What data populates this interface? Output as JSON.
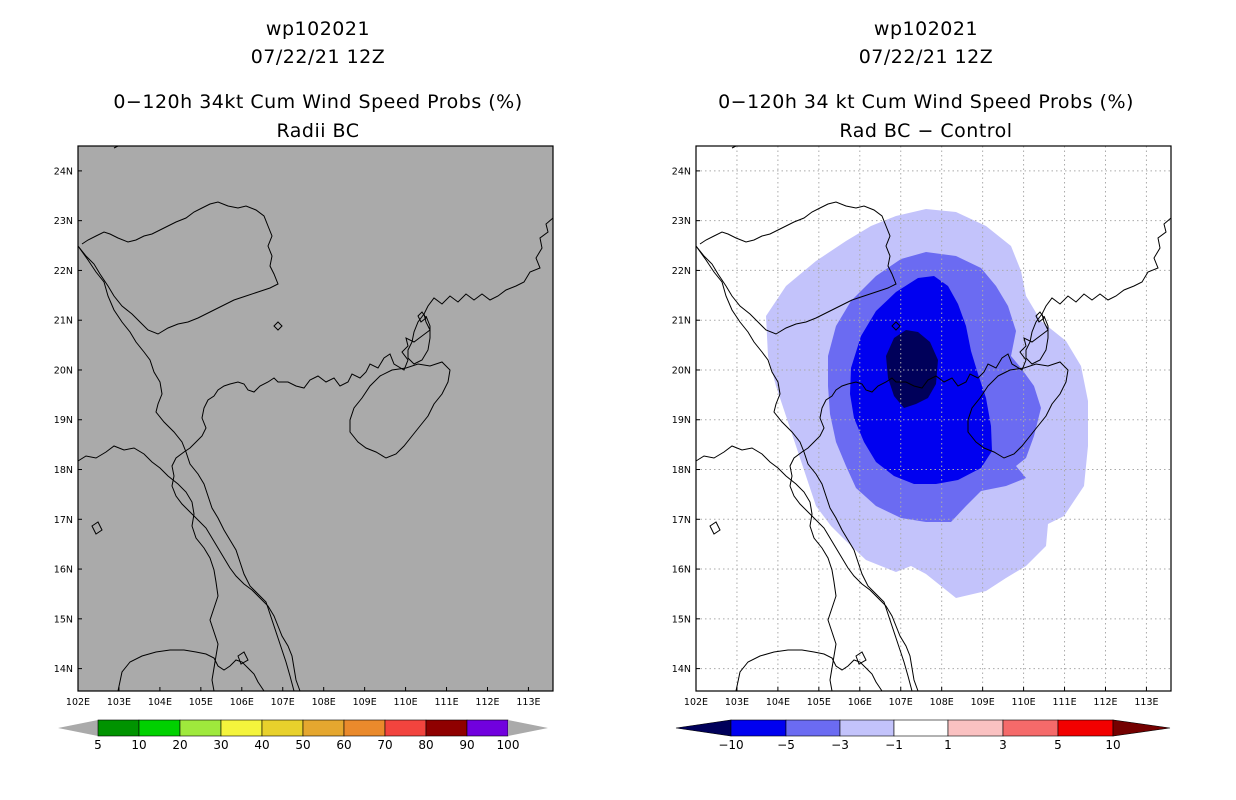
{
  "left_panel": {
    "title_line1": "wp102021",
    "title_line2": "07/22/21 12Z",
    "title_line3": "0−120h 34kt Cum Wind Speed Probs (%)",
    "title_line4": "Radii BC",
    "fill_color": "#aaaaaa",
    "colorbar": {
      "labels": [
        "5",
        "10",
        "20",
        "30",
        "40",
        "50",
        "60",
        "70",
        "80",
        "90",
        "100"
      ],
      "colors": [
        "#009300",
        "#00d100",
        "#9fe93c",
        "#f4f43c",
        "#e8d12c",
        "#e5a72f",
        "#ea8a2c",
        "#f2443e",
        "#8f0000",
        "#7100de"
      ]
    }
  },
  "right_panel": {
    "title_line1": "wp102021",
    "title_line2": "07/22/21 12Z",
    "title_line3": "0−120h 34 kt Cum Wind Speed Probs (%)",
    "title_line4": "Rad BC − Control",
    "colorbar": {
      "labels": [
        "−10",
        "−5",
        "−3",
        "−1",
        "1",
        "3",
        "5",
        "10"
      ],
      "colors": [
        "#00005a",
        "#0000f0",
        "#6b6bf2",
        "#c3c3fb",
        "#ffffff",
        "#fac1c1",
        "#f56a6a",
        "#f20000",
        "#740000"
      ]
    },
    "contour_levels": [
      "−1 to −3",
      "−3 to −5",
      "−5 to −10",
      "< −10"
    ]
  },
  "axes": {
    "lat_labels": [
      "14N",
      "15N",
      "16N",
      "17N",
      "18N",
      "19N",
      "20N",
      "21N",
      "22N",
      "23N",
      "24N"
    ],
    "lon_labels": [
      "102E",
      "103E",
      "104E",
      "105E",
      "106E",
      "107E",
      "108E",
      "109E",
      "110E",
      "111E",
      "112E",
      "113E"
    ]
  },
  "colors": {
    "frame": "#000000",
    "grid": "#aaaaaa",
    "coast": "#000000"
  }
}
